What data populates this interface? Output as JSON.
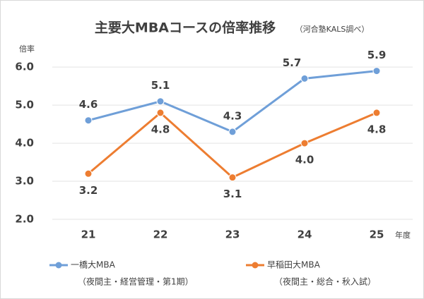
{
  "chart_data": {
    "type": "line",
    "title": "主要大MBAコースの倍率推移",
    "subtitle": "（河合塾KALS調べ）",
    "y_label": "倍率",
    "x_label": "年度",
    "categories": [
      "21",
      "22",
      "23",
      "24",
      "25"
    ],
    "series": [
      {
        "name": "一橋大MBA",
        "note": "（夜間主・経営管理・第1期）",
        "color": "#6f9fd8",
        "values": [
          4.6,
          5.1,
          4.3,
          5.7,
          5.9
        ],
        "value_labels": [
          "4.6",
          "5.1",
          "4.3",
          "5.7",
          "5.9"
        ]
      },
      {
        "name": "早稲田大MBA",
        "note": "（夜間主・総合・秋入試）",
        "color": "#ed7d31",
        "values": [
          3.2,
          4.8,
          3.1,
          4.0,
          4.8
        ],
        "value_labels": [
          "3.2",
          "4.8",
          "3.1",
          "4.0",
          "4.8"
        ]
      }
    ],
    "ylim": [
      2,
      6.3
    ],
    "yticks": [
      {
        "value": 2,
        "label": "2.0"
      },
      {
        "value": 3,
        "label": "3.0"
      },
      {
        "value": 4,
        "label": "4.0"
      },
      {
        "value": 5,
        "label": "5.0"
      },
      {
        "value": 6,
        "label": "6.0"
      }
    ],
    "grid": true
  }
}
